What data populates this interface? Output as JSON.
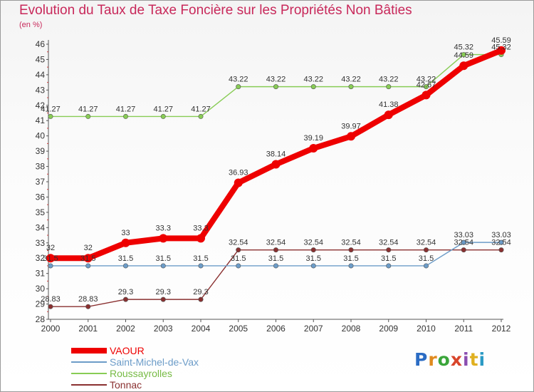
{
  "title": "Evolution du Taux de Taxe Foncière sur les Propriétés Non Bâties",
  "unit_label": "(en %)",
  "logo": {
    "letters": [
      "P",
      "r",
      "o",
      "x",
      "i",
      "t",
      "i"
    ],
    "colors": [
      "#2b6cc4",
      "#e08a1e",
      "#3aa53a",
      "#d8442a",
      "#8a4db0",
      "#e0b020",
      "#2b9ac4"
    ]
  },
  "chart_data": {
    "type": "line",
    "title": "Evolution du Taux de Taxe Foncière sur les Propriétés Non Bâties",
    "ylabel": "(en %)",
    "xlabel": "",
    "ylim": [
      28,
      46
    ],
    "categories": [
      "2000",
      "2001",
      "2002",
      "2003",
      "2004",
      "2005",
      "2006",
      "2007",
      "2008",
      "2009",
      "2010",
      "2011",
      "2012"
    ],
    "series": [
      {
        "name": "VAOUR",
        "color": "#ee0000",
        "labels": [
          "32",
          "32",
          "33",
          "33.3",
          "33.3",
          "36.93",
          "38.14",
          "39.19",
          "39.97",
          "41.38",
          "42.67",
          "44.59",
          "45.59"
        ],
        "values": [
          32,
          32,
          33,
          33.3,
          33.3,
          36.93,
          38.14,
          39.19,
          39.97,
          41.38,
          42.67,
          44.59,
          45.59
        ]
      },
      {
        "name": "Saint-Michel-de-Vax",
        "color": "#6c9cc8",
        "labels": [
          "31.5",
          "31.5",
          "31.5",
          "31.5",
          "31.5",
          "31.5",
          "31.5",
          "31.5",
          "31.5",
          "31.5",
          "31.5",
          "33.03",
          "33.03"
        ],
        "values": [
          31.5,
          31.5,
          31.5,
          31.5,
          31.5,
          31.5,
          31.5,
          31.5,
          31.5,
          31.5,
          31.5,
          33.03,
          33.03
        ]
      },
      {
        "name": "Roussayrolles",
        "color": "#88cc55",
        "labels": [
          "41.27",
          "41.27",
          "41.27",
          "41.27",
          "41.27",
          "43.22",
          "43.22",
          "43.22",
          "43.22",
          "43.22",
          "43.22",
          "45.32",
          "45.32"
        ],
        "values": [
          41.27,
          41.27,
          41.27,
          41.27,
          41.27,
          43.22,
          43.22,
          43.22,
          43.22,
          43.22,
          43.22,
          45.32,
          45.32
        ]
      },
      {
        "name": "Tonnac",
        "color": "#8a3030",
        "labels": [
          "28.83",
          "28.83",
          "29.3",
          "29.3",
          "29.3",
          "32.54",
          "32.54",
          "32.54",
          "32.54",
          "32.54",
          "32.54",
          "32.54",
          "32.54"
        ],
        "values": [
          28.83,
          28.83,
          29.3,
          29.3,
          29.3,
          32.54,
          32.54,
          32.54,
          32.54,
          32.54,
          32.54,
          32.54,
          32.54
        ]
      }
    ],
    "yticks": [
      "28",
      "29",
      "30",
      "31",
      "32",
      "33",
      "34",
      "35",
      "36",
      "37",
      "38",
      "39",
      "40",
      "41",
      "42",
      "43",
      "44",
      "45",
      "46"
    ],
    "legend": [
      "VAOUR",
      "Saint-Michel-de-Vax",
      "Roussayrolles",
      "Tonnac"
    ],
    "legend_position": "bottom-left",
    "grid": false
  }
}
